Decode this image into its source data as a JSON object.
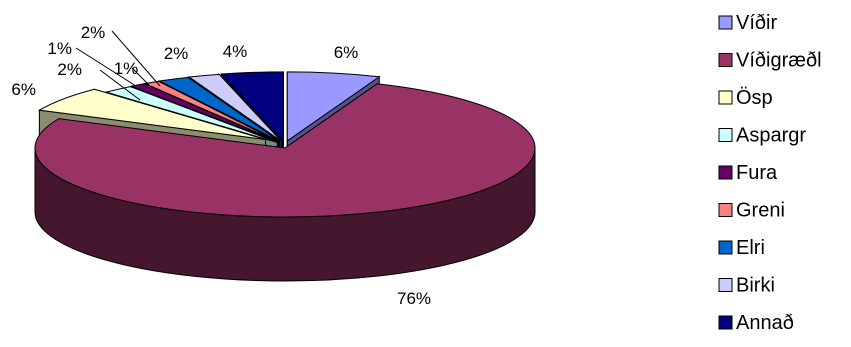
{
  "chart_data": {
    "type": "pie",
    "three_d": true,
    "exploded": true,
    "categories": [
      "Víðir",
      "Víðigræðl",
      "Ösp",
      "Aspargr",
      "Fura",
      "Greni",
      "Elri",
      "Birki",
      "Annað"
    ],
    "values": [
      6,
      76,
      6,
      2,
      1,
      1,
      2,
      2,
      4
    ],
    "data_labels": [
      "6%",
      "76%",
      "6%",
      "2%",
      "1%",
      "1%",
      "2%",
      "2%",
      "4%"
    ],
    "colors": [
      "#9999ff",
      "#993366",
      "#ffffcc",
      "#ccffff",
      "#660066",
      "#ff8080",
      "#0066cc",
      "#ccccff",
      "#000080"
    ],
    "legend_position": "right",
    "title": "",
    "grid": false
  }
}
